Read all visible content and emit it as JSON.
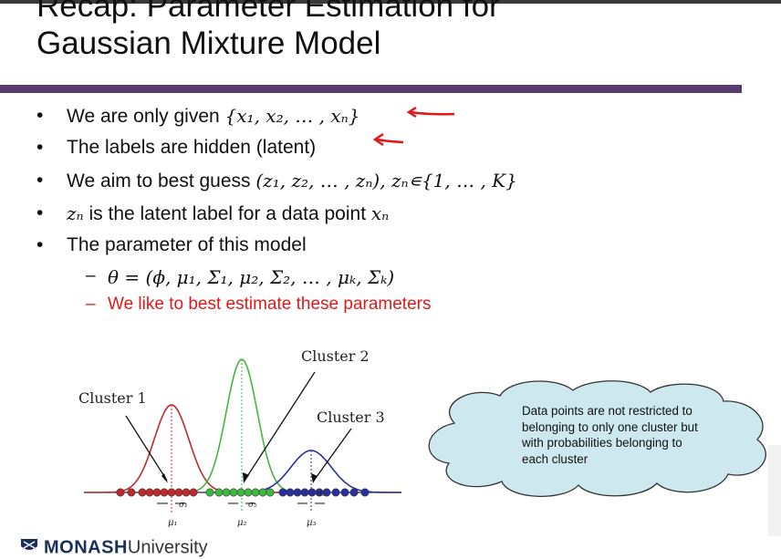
{
  "slide": {
    "title_line1": "Recap: Parameter Estimation for",
    "title_line2": "Gaussian Mixture Model",
    "bullet_char": "•",
    "dash_char": "–",
    "bullets": [
      {
        "text": "We are only given ",
        "math": "{x₁, x₂, … , xₙ}"
      },
      {
        "text": "The labels are hidden (latent)"
      },
      {
        "text": "We aim to best guess ",
        "math": "(z₁, z₂, … , zₙ),  zₙ∊{1, … , K}"
      },
      {
        "math_prefix": "zₙ",
        "text": " is the latent label for a data point ",
        "math": "xₙ"
      },
      {
        "text": "The parameter of this model"
      }
    ],
    "sub_bullets": [
      {
        "math": "θ = (ϕ, μ₁, Σ₁, μ₂, Σ₂, … , μₖ, Σₖ)"
      },
      {
        "text": "We like to best estimate these parameters",
        "color": "#e01818"
      }
    ]
  },
  "figure": {
    "cluster1_label": "Cluster 1",
    "cluster2_label": "Cluster 2",
    "cluster3_label": "Cluster 3",
    "sigma1": "σ₁",
    "sigma2": "σ₂",
    "sigma3": "σ₃",
    "mu1": "μ₁",
    "mu2": "μ₂",
    "mu3": "μ₃",
    "colors": {
      "cluster1": "#c0282d",
      "cluster2": "#3fb83f",
      "cluster3": "#2b2e9e"
    }
  },
  "callout": {
    "text": "Data points are not restricted to belonging to only one cluster but with probabilities belonging to each cluster",
    "fill": "#cde8ee"
  },
  "footer": {
    "brand_bold": "MONASH",
    "brand_light": "University"
  }
}
